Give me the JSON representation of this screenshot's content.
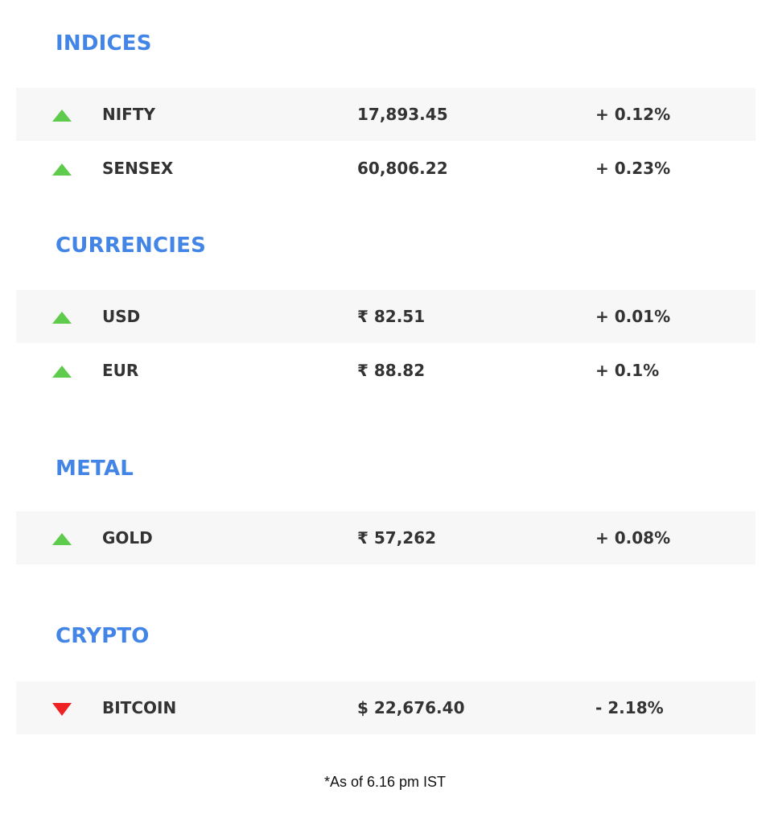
{
  "sections": [
    {
      "title": "INDICES",
      "rows": [
        {
          "name": "NIFTY",
          "value": "17,893.45",
          "change": "+ 0.12%",
          "direction": "up"
        },
        {
          "name": "SENSEX",
          "value": "60,806.22",
          "change": "+ 0.23%",
          "direction": "up"
        }
      ]
    },
    {
      "title": "CURRENCIES",
      "rows": [
        {
          "name": "USD",
          "value": "₹ 82.51",
          "change": "+ 0.01%",
          "direction": "up"
        },
        {
          "name": "EUR",
          "value": "₹ 88.82",
          "change": "+ 0.1%",
          "direction": "up"
        }
      ]
    },
    {
      "title": "METAL",
      "rows": [
        {
          "name": "GOLD",
          "value": "₹ 57,262",
          "change": "+ 0.08%",
          "direction": "up"
        }
      ]
    },
    {
      "title": "CRYPTO",
      "rows": [
        {
          "name": "BITCOIN",
          "value": "$ 22,676.40",
          "change": "- 2.18%",
          "direction": "down"
        }
      ]
    }
  ],
  "footnote": "*As of 6.16 pm IST",
  "colors": {
    "heading": "#4285e6",
    "up_arrow": "#5ecb4d",
    "down_arrow": "#ee2222",
    "row_shade": "#f7f7f7",
    "text": "#333333"
  },
  "icons": {
    "up": "triangle-up-icon",
    "down": "triangle-down-icon"
  }
}
